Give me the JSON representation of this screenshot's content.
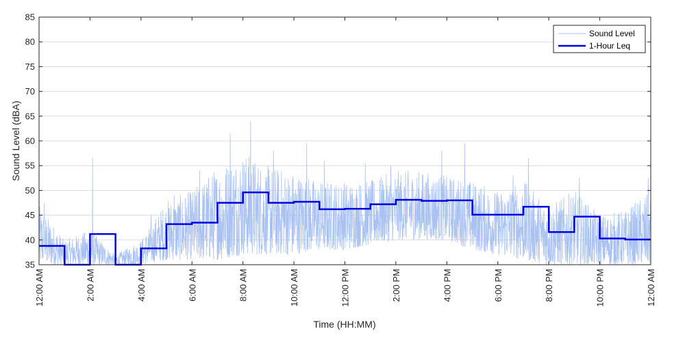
{
  "chart_data": {
    "type": "line",
    "xlabel": "Time (HH:MM)",
    "ylabel": "Sound Level (dBA)",
    "xlim": [
      0,
      24
    ],
    "ylim": [
      35,
      85
    ],
    "yticks": [
      35,
      40,
      45,
      50,
      55,
      60,
      65,
      70,
      75,
      80,
      85
    ],
    "xticks": [
      {
        "hour": 0,
        "label": "12:00 AM"
      },
      {
        "hour": 2,
        "label": "2:00 AM"
      },
      {
        "hour": 4,
        "label": "4:00 AM"
      },
      {
        "hour": 6,
        "label": "6:00 AM"
      },
      {
        "hour": 8,
        "label": "8:00 AM"
      },
      {
        "hour": 10,
        "label": "10:00 AM"
      },
      {
        "hour": 12,
        "label": "12:00 PM"
      },
      {
        "hour": 14,
        "label": "2:00 PM"
      },
      {
        "hour": 16,
        "label": "4:00 PM"
      },
      {
        "hour": 18,
        "label": "6:00 PM"
      },
      {
        "hour": 20,
        "label": "8:00 PM"
      },
      {
        "hour": 22,
        "label": "10:00 PM"
      },
      {
        "hour": 24,
        "label": "12:00 AM"
      }
    ],
    "grid": "horizontal",
    "legend_position": "top-right",
    "series": [
      {
        "name": "Sound Level",
        "color": "#a9c2f2",
        "style": "thin",
        "envelope": [
          {
            "hour": 0,
            "low": 35,
            "high": 47
          },
          {
            "hour": 1,
            "low": 35,
            "high": 40
          },
          {
            "hour": 2,
            "low": 35,
            "high": 42
          },
          {
            "hour": 3,
            "low": 35,
            "high": 37
          },
          {
            "hour": 4,
            "low": 35,
            "high": 40
          },
          {
            "hour": 5,
            "low": 36,
            "high": 48
          },
          {
            "hour": 6,
            "low": 36,
            "high": 50
          },
          {
            "hour": 7,
            "low": 36,
            "high": 55
          },
          {
            "hour": 8,
            "low": 37,
            "high": 58
          },
          {
            "hour": 9,
            "low": 37,
            "high": 55
          },
          {
            "hour": 10,
            "low": 37,
            "high": 54
          },
          {
            "hour": 11,
            "low": 38,
            "high": 52
          },
          {
            "hour": 12,
            "low": 38,
            "high": 52
          },
          {
            "hour": 13,
            "low": 39,
            "high": 52
          },
          {
            "hour": 14,
            "low": 40,
            "high": 54
          },
          {
            "hour": 15,
            "low": 40,
            "high": 54
          },
          {
            "hour": 16,
            "low": 40,
            "high": 53
          },
          {
            "hour": 17,
            "low": 38,
            "high": 52
          },
          {
            "hour": 18,
            "low": 37,
            "high": 50
          },
          {
            "hour": 19,
            "low": 36,
            "high": 52
          },
          {
            "hour": 20,
            "low": 35,
            "high": 47
          },
          {
            "hour": 21,
            "low": 35,
            "high": 50
          },
          {
            "hour": 22,
            "low": 35,
            "high": 45
          },
          {
            "hour": 23,
            "low": 35,
            "high": 46
          },
          {
            "hour": 24,
            "low": 35,
            "high": 50
          }
        ],
        "peaks": [
          {
            "hour": 0.2,
            "value": 47.5
          },
          {
            "hour": 2.1,
            "value": 56.5
          },
          {
            "hour": 4.4,
            "value": 45
          },
          {
            "hour": 5.3,
            "value": 49
          },
          {
            "hour": 6.3,
            "value": 54
          },
          {
            "hour": 7.5,
            "value": 61.5
          },
          {
            "hour": 8.3,
            "value": 64
          },
          {
            "hour": 9.2,
            "value": 58
          },
          {
            "hour": 10.5,
            "value": 59.5
          },
          {
            "hour": 11.2,
            "value": 56
          },
          {
            "hour": 12.8,
            "value": 55.5
          },
          {
            "hour": 13.8,
            "value": 55
          },
          {
            "hour": 15.8,
            "value": 58
          },
          {
            "hour": 16.7,
            "value": 59.5
          },
          {
            "hour": 18.6,
            "value": 53
          },
          {
            "hour": 19.2,
            "value": 56.5
          },
          {
            "hour": 21.2,
            "value": 52.5
          },
          {
            "hour": 23.9,
            "value": 52.5
          }
        ]
      },
      {
        "name": "1-Hour Leq",
        "color": "#0000e0",
        "style": "step",
        "values": [
          38.8,
          35,
          41.2,
          35,
          38.3,
          43.2,
          43.5,
          47.5,
          49.6,
          47.5,
          47.7,
          46.2,
          46.3,
          47.2,
          48.1,
          47.9,
          48.0,
          45.1,
          45.1,
          46.7,
          41.6,
          44.7,
          40.3,
          40.1
        ]
      }
    ]
  }
}
